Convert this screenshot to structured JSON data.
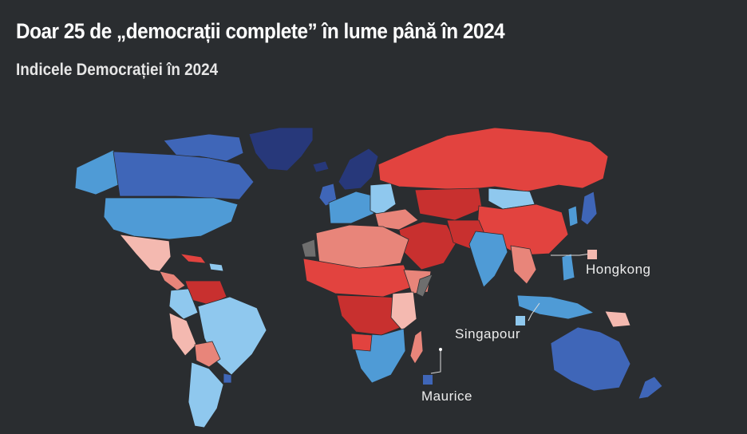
{
  "header": {
    "title": "Doar 25 de „democrații complete” în lume până în 2024",
    "subtitle": "Indicele Democrației în 2024"
  },
  "map": {
    "colors": {
      "background": "#2a2d30",
      "ocean": "#2a2d30",
      "full_democracy": "#27387a",
      "full_democracy_alt": "#3f66b8",
      "flawed_democracy": "#4f9bd6",
      "flawed_democracy_alt": "#8fc8ee",
      "hybrid_regime": "#f4b9b0",
      "hybrid_regime_alt": "#e8857a",
      "authoritarian": "#e2433f",
      "authoritarian_alt": "#c8302f",
      "no_data": "#6e6e6e",
      "callout_line": "#dcdcdc"
    },
    "callouts": [
      {
        "label": "Hongkong",
        "color": "#f4b9b0"
      },
      {
        "label": "Singapour",
        "color": "#8fc8ee"
      },
      {
        "label": "Maurice",
        "color": "#3f66b8"
      }
    ]
  }
}
